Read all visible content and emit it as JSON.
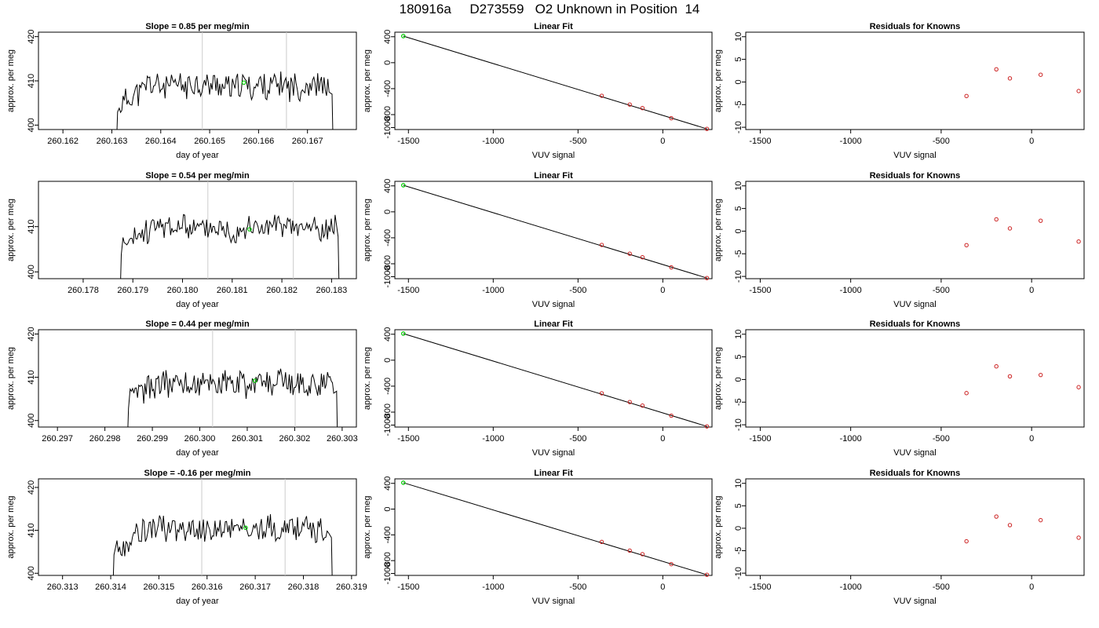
{
  "page_title": "180916a     D273559   O2 Unknown in Position  14",
  "colors": {
    "trace": "#000000",
    "unknown_point": "#00cc00",
    "known_point": "#cc2222",
    "marker_line": "#cccccc",
    "fit_line": "#000000"
  },
  "chart_data": [
    {
      "type": "line",
      "title": "Slope =  0.85  per meg/min",
      "xlabel": "day of year",
      "ylabel": "approx. per meg",
      "xlim": [
        260.1615,
        260.168
      ],
      "ylim": [
        399,
        421
      ],
      "xticks": [
        "260.162",
        "260.163",
        "260.164",
        "260.165",
        "260.166",
        "260.167"
      ],
      "yticks": [
        "400",
        "410",
        "420"
      ],
      "markers": [
        260.16485,
        260.16657
      ],
      "series": [
        {
          "x_start": 260.1631,
          "x_end": 260.16752,
          "mean": 409,
          "amplitude": 2.8,
          "seed": 11
        }
      ],
      "unknown_point": {
        "x": 260.1657,
        "y": 409.6
      }
    },
    {
      "type": "scatter",
      "title": "Linear Fit",
      "xlabel": "VUV signal",
      "ylabel": "approx. per meg",
      "xlim": [
        -1580,
        290
      ],
      "ylim": [
        -1030,
        470
      ],
      "xticks": [
        "-1500",
        "-1000",
        "-500",
        "0"
      ],
      "yticks": [
        "-1000",
        "-800",
        "-400",
        "0",
        "400"
      ],
      "knowns": [
        {
          "x": -360,
          "y": -510
        },
        {
          "x": -195,
          "y": -645
        },
        {
          "x": -120,
          "y": -700
        },
        {
          "x": 50,
          "y": -855
        },
        {
          "x": 260,
          "y": -1020
        }
      ],
      "unknown_point": {
        "x": -1530,
        "y": 410
      },
      "fit_line": {
        "x1": -1530,
        "y1": 410,
        "x2": 260,
        "y2": -1020
      }
    },
    {
      "type": "scatter",
      "title": "Residuals for Knowns",
      "xlabel": "VUV signal",
      "ylabel": "approx. per meg",
      "xlim": [
        -1580,
        290
      ],
      "ylim": [
        -10.5,
        11
      ],
      "xticks": [
        "-1500",
        "-1000",
        "-500",
        "0"
      ],
      "yticks": [
        "-10",
        "-5",
        "0",
        "5",
        "10"
      ],
      "points": [
        {
          "x": -360,
          "y": -3.1
        },
        {
          "x": -195,
          "y": 2.8
        },
        {
          "x": -120,
          "y": 0.8
        },
        {
          "x": 50,
          "y": 1.6
        },
        {
          "x": 260,
          "y": -2.0
        }
      ]
    },
    {
      "type": "line",
      "title": "Slope =  0.54  per meg/min",
      "xlabel": "day of year",
      "ylabel": "approx. per meg",
      "xlim": [
        260.1771,
        260.1835
      ],
      "ylim": [
        398.5,
        420
      ],
      "xticks": [
        "260.178",
        "260.179",
        "260.180",
        "260.181",
        "260.182",
        "260.183"
      ],
      "yticks": [
        "400",
        "410"
      ],
      "markers": [
        260.18051,
        260.18223
      ],
      "series": [
        {
          "x_start": 260.17875,
          "x_end": 260.18315,
          "mean": 409.8,
          "amplitude": 2.6,
          "seed": 23
        }
      ],
      "unknown_point": {
        "x": 260.18135,
        "y": 409.4
      }
    },
    {
      "type": "scatter",
      "title": "Linear Fit",
      "xlabel": "VUV signal",
      "ylabel": "approx. per meg",
      "xlim": [
        -1580,
        290
      ],
      "ylim": [
        -1030,
        470
      ],
      "xticks": [
        "-1500",
        "-1000",
        "-500",
        "0"
      ],
      "yticks": [
        "-1000",
        "-800",
        "-400",
        "0",
        "400"
      ],
      "knowns": [
        {
          "x": -360,
          "y": -510
        },
        {
          "x": -195,
          "y": -645
        },
        {
          "x": -120,
          "y": -700
        },
        {
          "x": 50,
          "y": -855
        },
        {
          "x": 260,
          "y": -1020
        }
      ],
      "unknown_point": {
        "x": -1530,
        "y": 410
      },
      "fit_line": {
        "x1": -1530,
        "y1": 410,
        "x2": 260,
        "y2": -1020
      }
    },
    {
      "type": "scatter",
      "title": "Residuals for Knowns",
      "xlabel": "VUV signal",
      "ylabel": "approx. per meg",
      "xlim": [
        -1580,
        290
      ],
      "ylim": [
        -10.5,
        11
      ],
      "xticks": [
        "-1500",
        "-1000",
        "-500",
        "0"
      ],
      "yticks": [
        "-10",
        "-5",
        "0",
        "5",
        "10"
      ],
      "points": [
        {
          "x": -360,
          "y": -3.1
        },
        {
          "x": -195,
          "y": 2.6
        },
        {
          "x": -120,
          "y": 0.6
        },
        {
          "x": 50,
          "y": 2.3
        },
        {
          "x": 260,
          "y": -2.3
        }
      ]
    },
    {
      "type": "line",
      "title": "Slope =  0.44  per meg/min",
      "xlabel": "day of year",
      "ylabel": "approx. per meg",
      "xlim": [
        260.2966,
        260.3033
      ],
      "ylim": [
        398.5,
        421
      ],
      "xticks": [
        "260.297",
        "260.298",
        "260.299",
        "260.300",
        "260.301",
        "260.302",
        "260.303"
      ],
      "yticks": [
        "400",
        "410",
        "420"
      ],
      "markers": [
        260.30027,
        260.30201
      ],
      "series": [
        {
          "x_start": 260.29848,
          "x_end": 260.3029,
          "mean": 408.8,
          "amplitude": 3.0,
          "seed": 37
        }
      ],
      "unknown_point": {
        "x": 260.30116,
        "y": 409.2
      }
    },
    {
      "type": "scatter",
      "title": "Linear Fit",
      "xlabel": "VUV signal",
      "ylabel": "approx. per meg",
      "xlim": [
        -1580,
        290
      ],
      "ylim": [
        -1030,
        470
      ],
      "xticks": [
        "-1500",
        "-1000",
        "-500",
        "0"
      ],
      "yticks": [
        "-1000",
        "-800",
        "-400",
        "0",
        "400"
      ],
      "knowns": [
        {
          "x": -360,
          "y": -510
        },
        {
          "x": -195,
          "y": -645
        },
        {
          "x": -120,
          "y": -700
        },
        {
          "x": 50,
          "y": -855
        },
        {
          "x": 260,
          "y": -1020
        }
      ],
      "unknown_point": {
        "x": -1530,
        "y": 410
      },
      "fit_line": {
        "x1": -1530,
        "y1": 410,
        "x2": 260,
        "y2": -1020
      }
    },
    {
      "type": "scatter",
      "title": "Residuals for Knowns",
      "xlabel": "VUV signal",
      "ylabel": "approx. per meg",
      "xlim": [
        -1580,
        290
      ],
      "ylim": [
        -10.5,
        11
      ],
      "points": [
        {
          "x": -360,
          "y": -3.0
        },
        {
          "x": -195,
          "y": 2.9
        },
        {
          "x": -120,
          "y": 0.7
        },
        {
          "x": 50,
          "y": 1.0
        },
        {
          "x": 260,
          "y": -1.7
        }
      ],
      "xticks": [
        "-1500",
        "-1000",
        "-500",
        "0"
      ],
      "yticks": [
        "-10",
        "-5",
        "0",
        "5",
        "10"
      ]
    },
    {
      "type": "line",
      "title": "Slope =  -0.16  per meg/min",
      "xlabel": "day of year",
      "ylabel": "approx. per meg",
      "xlim": [
        260.3125,
        260.3191
      ],
      "ylim": [
        399.5,
        422
      ],
      "xticks": [
        "260.313",
        "260.314",
        "260.315",
        "260.316",
        "260.317",
        "260.318",
        "260.319"
      ],
      "yticks": [
        "400",
        "410",
        "420"
      ],
      "markers": [
        260.31589,
        260.31762
      ],
      "series": [
        {
          "x_start": 260.31405,
          "x_end": 260.3186,
          "mean": 410.3,
          "amplitude": 2.8,
          "seed": 53
        }
      ],
      "unknown_point": {
        "x": 260.3168,
        "y": 410.6
      }
    },
    {
      "type": "scatter",
      "title": "Linear Fit",
      "xlabel": "VUV signal",
      "ylabel": "approx. per meg",
      "xlim": [
        -1580,
        290
      ],
      "ylim": [
        -1030,
        470
      ],
      "xticks": [
        "-1500",
        "-1000",
        "-500",
        "0"
      ],
      "yticks": [
        "-1000",
        "-800",
        "-400",
        "0",
        "400"
      ],
      "knowns": [
        {
          "x": -360,
          "y": -510
        },
        {
          "x": -195,
          "y": -645
        },
        {
          "x": -120,
          "y": -700
        },
        {
          "x": 50,
          "y": -855
        },
        {
          "x": 260,
          "y": -1020
        }
      ],
      "unknown_point": {
        "x": -1530,
        "y": 410
      },
      "fit_line": {
        "x1": -1530,
        "y1": 410,
        "x2": 260,
        "y2": -1020
      }
    },
    {
      "type": "scatter",
      "title": "Residuals for Knowns",
      "xlabel": "VUV signal",
      "ylabel": "approx. per meg",
      "xlim": [
        -1580,
        290
      ],
      "ylim": [
        -10.5,
        11
      ],
      "xticks": [
        "-1500",
        "-1000",
        "-500",
        "0"
      ],
      "yticks": [
        "-10",
        "-5",
        "0",
        "5",
        "10"
      ],
      "points": [
        {
          "x": -360,
          "y": -2.9
        },
        {
          "x": -195,
          "y": 2.6
        },
        {
          "x": -120,
          "y": 0.7
        },
        {
          "x": 50,
          "y": 1.8
        },
        {
          "x": 260,
          "y": -2.1
        }
      ]
    }
  ]
}
